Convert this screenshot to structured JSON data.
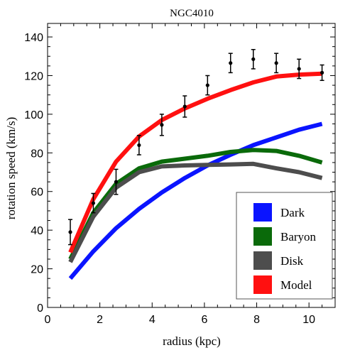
{
  "chart_data": {
    "type": "line",
    "title": "NGC4010",
    "xlabel": "radius (kpc)",
    "ylabel": "rotation speed (km/s)",
    "xlim": [
      0,
      11.0
    ],
    "ylim": [
      0,
      147
    ],
    "xticks": [
      0,
      2,
      4,
      6,
      8,
      10
    ],
    "yticks": [
      0,
      20,
      40,
      60,
      80,
      100,
      120,
      140
    ],
    "grid": false,
    "legend_position": "bottom-right",
    "series": [
      {
        "name": "Dark",
        "color": "#0a14ff",
        "x": [
          0.87,
          1.75,
          2.62,
          3.5,
          4.37,
          5.25,
          6.12,
          7.0,
          7.87,
          8.75,
          9.62,
          10.5
        ],
        "y": [
          15,
          29,
          41,
          51,
          59.5,
          67,
          73.5,
          79,
          84,
          88,
          92,
          95
        ]
      },
      {
        "name": "Baryon",
        "color": "#0a6a0a",
        "x": [
          0.87,
          1.75,
          2.62,
          3.5,
          4.37,
          5.25,
          6.12,
          7.0,
          7.87,
          8.75,
          9.62,
          10.5
        ],
        "y": [
          25,
          49,
          64,
          72,
          75.5,
          77,
          78.5,
          80.5,
          81.5,
          81,
          78.5,
          75
        ]
      },
      {
        "name": "Disk",
        "color": "#4d4d4d",
        "x": [
          0.87,
          1.75,
          2.62,
          3.5,
          4.37,
          5.25,
          6.12,
          7.0,
          7.87,
          8.75,
          9.62,
          10.5
        ],
        "y": [
          23.5,
          47,
          62,
          70,
          73,
          73.5,
          73.8,
          74,
          74.3,
          72,
          70,
          67
        ]
      },
      {
        "name": "Model",
        "color": "#ff1010",
        "x": [
          0.87,
          1.75,
          2.62,
          3.5,
          4.37,
          5.25,
          6.12,
          7.0,
          7.87,
          8.75,
          9.62,
          10.5
        ],
        "y": [
          28.5,
          56,
          75.5,
          88.5,
          97,
          103,
          108,
          112.5,
          116.5,
          119.5,
          120.5,
          121
        ]
      }
    ],
    "observations": {
      "x": [
        0.87,
        1.75,
        2.62,
        3.5,
        4.37,
        5.25,
        6.12,
        7.0,
        7.87,
        8.75,
        9.62,
        10.5
      ],
      "y": [
        39,
        54,
        65,
        84,
        94.5,
        104,
        115,
        126.5,
        128.5,
        126.5,
        123.5,
        121.5
      ],
      "error": [
        6.5,
        5,
        6.5,
        5,
        5.5,
        5.5,
        5,
        5,
        5,
        5,
        5,
        4
      ]
    }
  }
}
